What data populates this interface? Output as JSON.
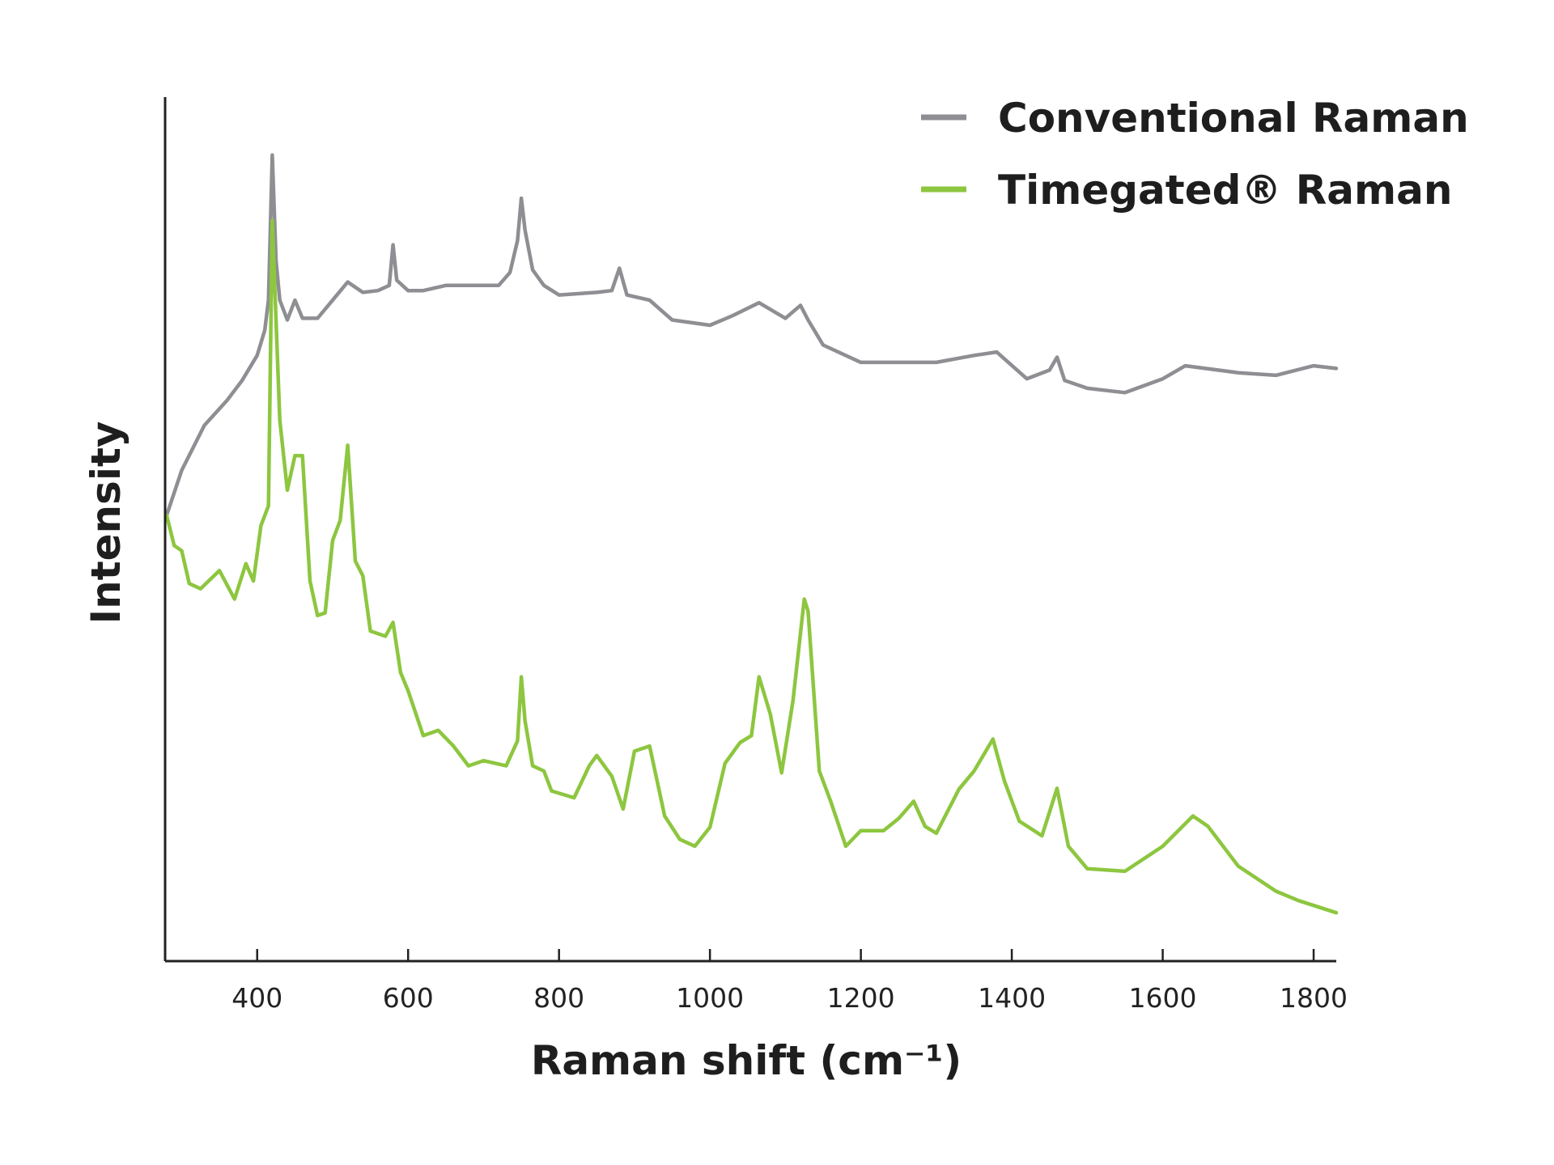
{
  "chart_data": {
    "type": "line",
    "title": "",
    "xlabel": "Raman shift (cm⁻¹)",
    "ylabel": "Intensity",
    "xlim": [
      278,
      1830
    ],
    "ylim": [
      0,
      100
    ],
    "xticks": [
      400,
      600,
      800,
      1000,
      1200,
      1400,
      1600,
      1800
    ],
    "grid": false,
    "legend_position": "top-right",
    "series": [
      {
        "name": "Conventional Raman",
        "color": "#8e8e93",
        "points": [
          [
            280,
            51.6
          ],
          [
            300,
            56.8
          ],
          [
            330,
            62
          ],
          [
            360,
            64.9
          ],
          [
            380,
            67.2
          ],
          [
            400,
            70.1
          ],
          [
            410,
            73
          ],
          [
            415,
            76.5
          ],
          [
            420,
            93.3
          ],
          [
            425,
            81
          ],
          [
            430,
            76.5
          ],
          [
            440,
            74.2
          ],
          [
            450,
            76.5
          ],
          [
            460,
            74.4
          ],
          [
            480,
            74.4
          ],
          [
            500,
            76.5
          ],
          [
            520,
            78.6
          ],
          [
            540,
            77.4
          ],
          [
            560,
            77.6
          ],
          [
            575,
            78.2
          ],
          [
            580,
            82.9
          ],
          [
            585,
            78.8
          ],
          [
            600,
            77.6
          ],
          [
            620,
            77.6
          ],
          [
            650,
            78.2
          ],
          [
            700,
            78.2
          ],
          [
            720,
            78.2
          ],
          [
            735,
            79.7
          ],
          [
            745,
            83.4
          ],
          [
            750,
            88.3
          ],
          [
            755,
            84.6
          ],
          [
            765,
            80
          ],
          [
            780,
            78.2
          ],
          [
            800,
            77.1
          ],
          [
            850,
            77.4
          ],
          [
            870,
            77.6
          ],
          [
            880,
            80.2
          ],
          [
            890,
            77.1
          ],
          [
            920,
            76.5
          ],
          [
            950,
            74.2
          ],
          [
            1000,
            73.6
          ],
          [
            1030,
            74.7
          ],
          [
            1065,
            76.2
          ],
          [
            1100,
            74.4
          ],
          [
            1120,
            75.9
          ],
          [
            1130,
            74.2
          ],
          [
            1150,
            71.3
          ],
          [
            1200,
            69.3
          ],
          [
            1300,
            69.3
          ],
          [
            1350,
            70.1
          ],
          [
            1380,
            70.5
          ],
          [
            1420,
            67.4
          ],
          [
            1450,
            68.4
          ],
          [
            1460,
            69.9
          ],
          [
            1470,
            67.2
          ],
          [
            1500,
            66.3
          ],
          [
            1550,
            65.8
          ],
          [
            1600,
            67.4
          ],
          [
            1630,
            68.9
          ],
          [
            1700,
            68.1
          ],
          [
            1750,
            67.8
          ],
          [
            1800,
            68.9
          ],
          [
            1830,
            68.6
          ]
        ]
      },
      {
        "name": "Timegated® Raman",
        "color": "#8dc63f",
        "points": [
          [
            280,
            51.6
          ],
          [
            290,
            48.1
          ],
          [
            300,
            47.5
          ],
          [
            310,
            43.7
          ],
          [
            325,
            43.1
          ],
          [
            350,
            45.2
          ],
          [
            370,
            41.9
          ],
          [
            385,
            46
          ],
          [
            395,
            44
          ],
          [
            405,
            50.4
          ],
          [
            415,
            52.7
          ],
          [
            420,
            85.7
          ],
          [
            430,
            62.6
          ],
          [
            440,
            54.5
          ],
          [
            450,
            58.5
          ],
          [
            460,
            58.5
          ],
          [
            470,
            44
          ],
          [
            480,
            40
          ],
          [
            490,
            40.3
          ],
          [
            500,
            48.7
          ],
          [
            510,
            51
          ],
          [
            520,
            59.7
          ],
          [
            530,
            46.3
          ],
          [
            540,
            44.6
          ],
          [
            550,
            38.2
          ],
          [
            570,
            37.6
          ],
          [
            580,
            39.2
          ],
          [
            590,
            33.4
          ],
          [
            600,
            31.3
          ],
          [
            620,
            26.1
          ],
          [
            640,
            26.7
          ],
          [
            660,
            24.9
          ],
          [
            680,
            22.6
          ],
          [
            700,
            23.2
          ],
          [
            730,
            22.6
          ],
          [
            745,
            25.5
          ],
          [
            750,
            32.9
          ],
          [
            755,
            27.8
          ],
          [
            765,
            22.6
          ],
          [
            780,
            22
          ],
          [
            790,
            19.7
          ],
          [
            820,
            18.9
          ],
          [
            840,
            22.6
          ],
          [
            850,
            23.8
          ],
          [
            870,
            21.4
          ],
          [
            885,
            17.6
          ],
          [
            900,
            24.3
          ],
          [
            920,
            24.9
          ],
          [
            940,
            16.8
          ],
          [
            960,
            14.1
          ],
          [
            980,
            13.3
          ],
          [
            1000,
            15.5
          ],
          [
            1020,
            22.9
          ],
          [
            1040,
            25.3
          ],
          [
            1055,
            26.1
          ],
          [
            1065,
            32.9
          ],
          [
            1080,
            28.6
          ],
          [
            1095,
            21.8
          ],
          [
            1110,
            30.1
          ],
          [
            1125,
            41.9
          ],
          [
            1130,
            40.5
          ],
          [
            1145,
            22
          ],
          [
            1160,
            18.5
          ],
          [
            1180,
            13.3
          ],
          [
            1200,
            15.1
          ],
          [
            1230,
            15.1
          ],
          [
            1250,
            16.5
          ],
          [
            1270,
            18.5
          ],
          [
            1285,
            15.6
          ],
          [
            1300,
            14.8
          ],
          [
            1330,
            19.9
          ],
          [
            1350,
            22
          ],
          [
            1375,
            25.7
          ],
          [
            1390,
            20.9
          ],
          [
            1410,
            16.2
          ],
          [
            1440,
            14.5
          ],
          [
            1460,
            20
          ],
          [
            1475,
            13.3
          ],
          [
            1500,
            10.7
          ],
          [
            1550,
            10.4
          ],
          [
            1600,
            13.3
          ],
          [
            1640,
            16.8
          ],
          [
            1660,
            15.6
          ],
          [
            1700,
            11
          ],
          [
            1750,
            8.1
          ],
          [
            1780,
            7
          ],
          [
            1830,
            5.6
          ]
        ]
      }
    ]
  },
  "legend": {
    "items": [
      "Conventional Raman",
      "Timegated® Raman"
    ]
  }
}
